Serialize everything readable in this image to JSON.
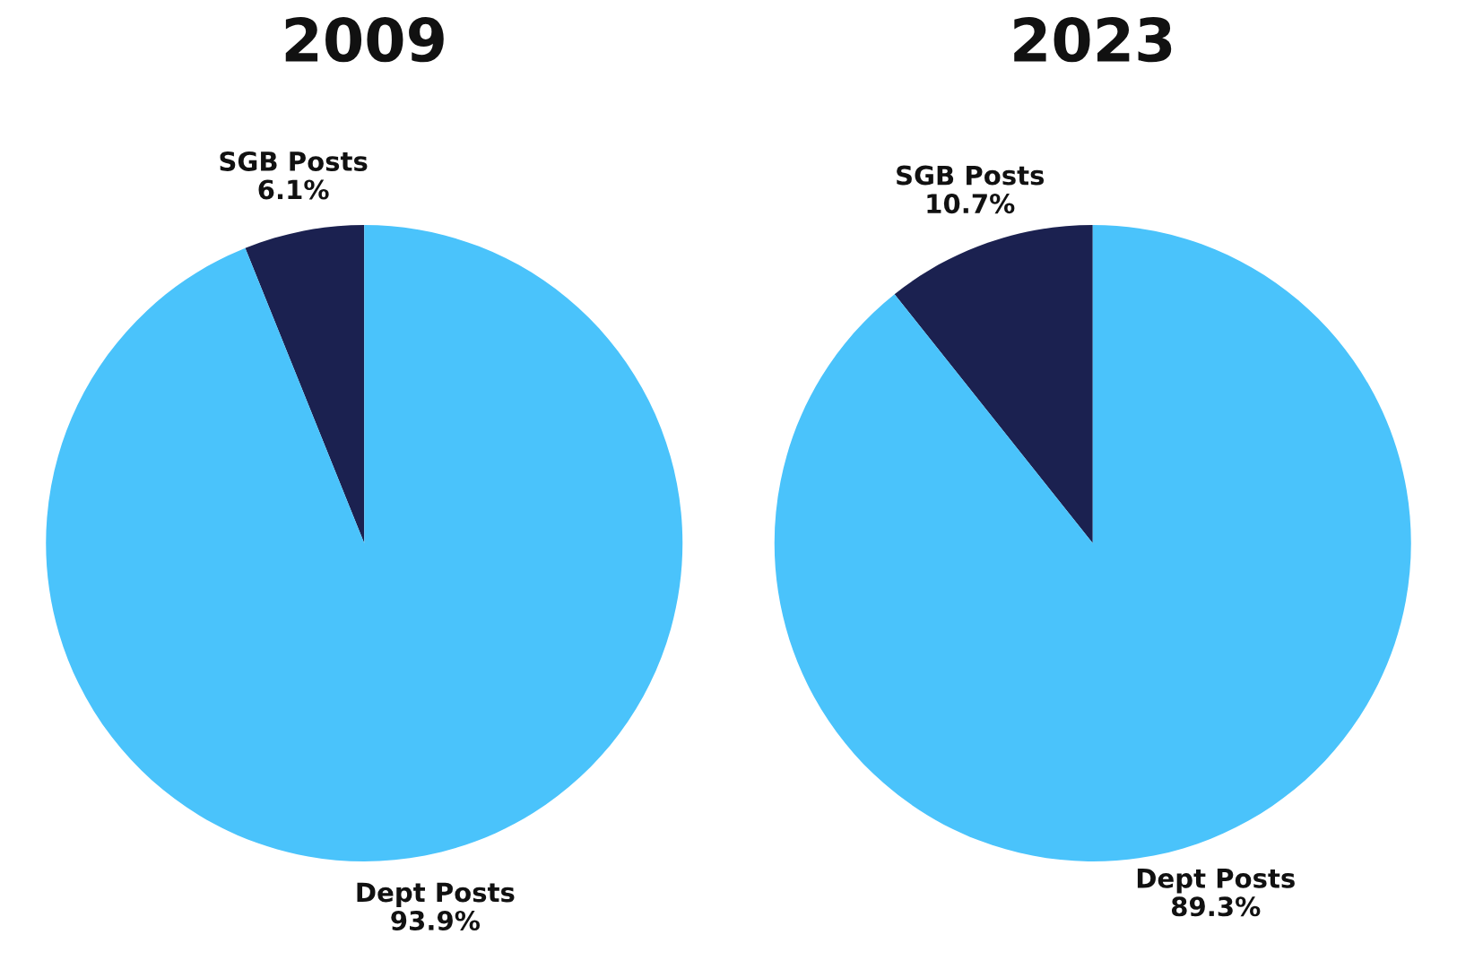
{
  "chart_data": [
    {
      "type": "pie",
      "title": "2009",
      "categories": [
        "SGB Posts",
        "Dept Posts"
      ],
      "values": [
        6.1,
        93.9
      ],
      "value_labels": [
        "6.1%",
        "93.9%"
      ],
      "colors": [
        "#1b2150",
        "#4ac3fb"
      ]
    },
    {
      "type": "pie",
      "title": "2023",
      "categories": [
        "SGB Posts",
        "Dept Posts"
      ],
      "values": [
        10.7,
        89.3
      ],
      "value_labels": [
        "10.7%",
        "89.3%"
      ],
      "colors": [
        "#1b2150",
        "#4ac3fb"
      ]
    }
  ]
}
